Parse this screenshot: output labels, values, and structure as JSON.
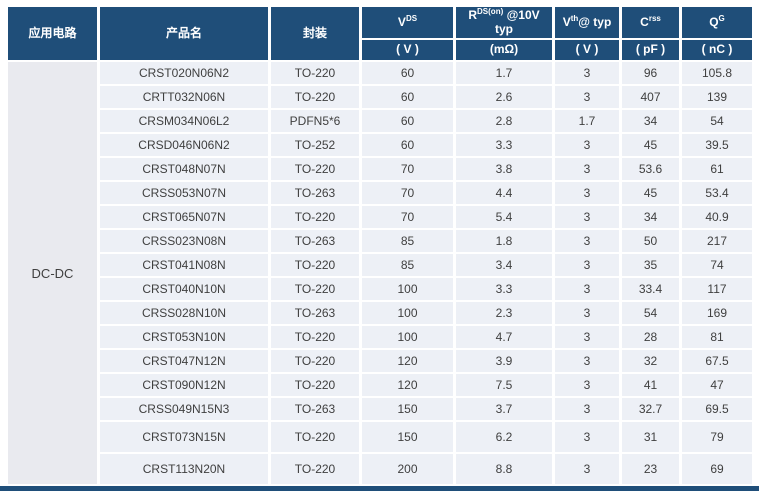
{
  "table": {
    "application_group": "DC-DC",
    "headers": {
      "application": "应用电路",
      "product": "产品名",
      "package": "封装",
      "vds": {
        "base": "V",
        "sup": "DS",
        "rest": "",
        "unit": "( V )"
      },
      "rds": {
        "base": "R",
        "sup": "DS(on)",
        "rest": " @10V typ",
        "unit": "(mΩ)"
      },
      "vth": {
        "base": "V",
        "sup": "th",
        "rest": "@ typ",
        "unit": "( V )"
      },
      "crss": {
        "base": "C",
        "sup": "rss",
        "rest": "",
        "unit": "( pF )"
      },
      "qg": {
        "base": "Q",
        "sup": "G",
        "rest": "",
        "unit": "( nC )"
      }
    },
    "rows": [
      [
        "CRST020N06N2",
        "TO-220",
        "60",
        "1.7",
        "3",
        "96",
        "105.8"
      ],
      [
        "CRTT032N06N",
        "TO-220",
        "60",
        "2.6",
        "3",
        "407",
        "139"
      ],
      [
        "CRSM034N06L2",
        "PDFN5*6",
        "60",
        "2.8",
        "1.7",
        "34",
        "54"
      ],
      [
        "CRSD046N06N2",
        "TO-252",
        "60",
        "3.3",
        "3",
        "45",
        "39.5"
      ],
      [
        "CRST048N07N",
        "TO-220",
        "70",
        "3.8",
        "3",
        "53.6",
        "61"
      ],
      [
        "CRSS053N07N",
        "TO-263",
        "70",
        "4.4",
        "3",
        "45",
        "53.4"
      ],
      [
        "CRST065N07N",
        "TO-220",
        "70",
        "5.4",
        "3",
        "34",
        "40.9"
      ],
      [
        "CRSS023N08N",
        "TO-263",
        "85",
        "1.8",
        "3",
        "50",
        "217"
      ],
      [
        "CRST041N08N",
        "TO-220",
        "85",
        "3.4",
        "3",
        "35",
        "74"
      ],
      [
        "CRST040N10N",
        "TO-220",
        "100",
        "3.3",
        "3",
        "33.4",
        "117"
      ],
      [
        "CRSS028N10N",
        "TO-263",
        "100",
        "2.3",
        "3",
        "54",
        "169"
      ],
      [
        "CRST053N10N",
        "TO-220",
        "100",
        "4.7",
        "3",
        "28",
        "81"
      ],
      [
        "CRST047N12N",
        "TO-220",
        "120",
        "3.9",
        "3",
        "32",
        "67.5"
      ],
      [
        "CRST090N12N",
        "TO-220",
        "120",
        "7.5",
        "3",
        "41",
        "47"
      ],
      [
        "CRSS049N15N3",
        "TO-263",
        "150",
        "3.7",
        "3",
        "32.7",
        "69.5"
      ],
      [
        "CRST073N15N",
        "TO-220",
        "150",
        "6.2",
        "3",
        "31",
        "79"
      ],
      [
        "CRST113N20N",
        "TO-220",
        "200",
        "8.8",
        "3",
        "23",
        "69"
      ]
    ],
    "cell_names": [
      "product-name",
      "package",
      "vds-value",
      "rds-value",
      "vth-value",
      "crss-value",
      "qg-value"
    ]
  },
  "colors": {
    "header_bg": "#1f4e79",
    "row_bg": "#edf0f6",
    "group_bg": "#e9eaef",
    "text": "#3f3f3f"
  }
}
